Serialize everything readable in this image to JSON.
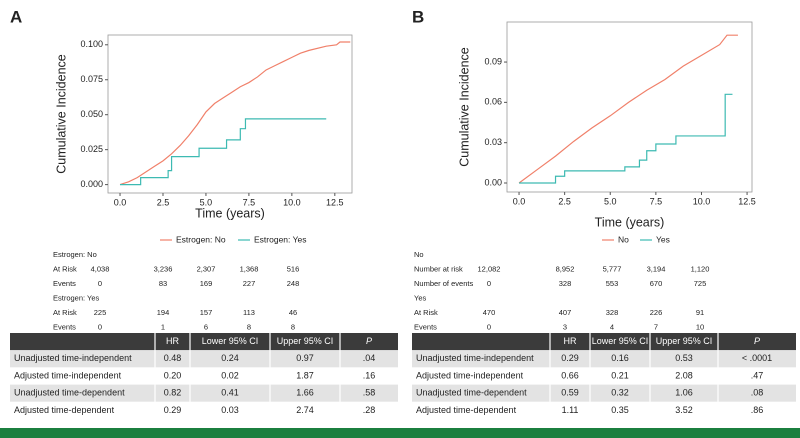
{
  "chart_data": [
    {
      "type": "line",
      "label": "A",
      "xlabel": "Time (years)",
      "ylabel": "Cumulative Incidence",
      "xlim": [
        -0.7,
        13.5
      ],
      "ylim": [
        -0.006,
        0.107
      ],
      "xticks": [
        {
          "value": 0,
          "label": "0.0"
        },
        2.5,
        {
          "value": 5,
          "label": "5.0"
        },
        7.5,
        {
          "value": 10,
          "label": "10.0"
        },
        12.5
      ],
      "yticks": [
        {
          "value": 0,
          "label": "0.000"
        },
        {
          "value": 0.025,
          "label": "0.025"
        },
        {
          "value": 0.05,
          "label": "0.050"
        },
        {
          "value": 0.075,
          "label": "0.075"
        },
        {
          "value": 0.1,
          "label": "0.100"
        }
      ],
      "series": [
        {
          "name": "Estrogen: No",
          "color": "#f0806a",
          "x": [
            0,
            0.5,
            1,
            1.5,
            2,
            2.5,
            3,
            3.5,
            4,
            4.5,
            5,
            5.5,
            6,
            6.5,
            7,
            7.5,
            8,
            8.5,
            9,
            9.5,
            10,
            10.5,
            11,
            12,
            12.6,
            12.8,
            13.4
          ],
          "values": [
            0,
            0.002,
            0.005,
            0.009,
            0.013,
            0.017,
            0.022,
            0.028,
            0.035,
            0.043,
            0.052,
            0.058,
            0.062,
            0.066,
            0.07,
            0.073,
            0.077,
            0.082,
            0.085,
            0.088,
            0.091,
            0.094,
            0.096,
            0.099,
            0.1,
            0.102,
            0.102
          ]
        },
        {
          "name": "Estrogen: Yes",
          "color": "#3dbab2",
          "x": [
            0,
            1.2,
            1.2,
            2.8,
            2.8,
            3.0,
            3.0,
            4.6,
            4.6,
            6.2,
            6.2,
            7.0,
            7.0,
            7.3,
            7.3,
            12
          ],
          "values": [
            0,
            0,
            0.005,
            0.005,
            0.01,
            0.01,
            0.02,
            0.02,
            0.026,
            0.026,
            0.032,
            0.032,
            0.04,
            0.04,
            0.047,
            0.047
          ]
        }
      ]
    },
    {
      "type": "line",
      "label": "B",
      "xlabel": "Time (years)",
      "ylabel": "Cumulative Incidence",
      "xlim": [
        -0.66,
        12.77
      ],
      "ylim": [
        -0.0067,
        0.1198
      ],
      "xticks": [
        {
          "value": 0,
          "label": "0.0"
        },
        2.5,
        {
          "value": 5,
          "label": "5.0"
        },
        7.5,
        {
          "value": 10,
          "label": "10.0"
        },
        12.5
      ],
      "yticks": [
        {
          "value": 0,
          "label": "0.00"
        },
        {
          "value": 0.03,
          "label": "0.03"
        },
        {
          "value": 0.06,
          "label": "0.06"
        },
        {
          "value": 0.09,
          "label": "0.09"
        }
      ],
      "series": [
        {
          "name": "No",
          "color": "#f0806a",
          "x": [
            0,
            1,
            2,
            3,
            4,
            5,
            6,
            7,
            8,
            9,
            10,
            11,
            11.4,
            12
          ],
          "values": [
            0,
            0.01,
            0.02,
            0.031,
            0.041,
            0.05,
            0.06,
            0.069,
            0.077,
            0.087,
            0.095,
            0.103,
            0.11,
            0.11
          ]
        },
        {
          "name": "Yes",
          "color": "#3dbab2",
          "x": [
            0,
            2,
            2,
            2.5,
            2.5,
            5.8,
            5.8,
            6.6,
            6.6,
            7,
            7,
            7.5,
            7.5,
            8.6,
            8.6,
            11.3,
            11.3,
            11.7
          ],
          "values": [
            0,
            0,
            0.005,
            0.005,
            0.009,
            0.009,
            0.012,
            0.012,
            0.017,
            0.017,
            0.024,
            0.024,
            0.029,
            0.029,
            0.035,
            0.035,
            0.066,
            0.066
          ]
        }
      ]
    }
  ],
  "risk_tables": [
    {
      "groups": [
        {
          "title": "Estrogen: No",
          "rows": [
            {
              "label": "At Risk",
              "values": [
                "4,038",
                "3,236",
                "2,307",
                "1,368",
                "516"
              ]
            },
            {
              "label": "Events",
              "values": [
                "0",
                "83",
                "169",
                "227",
                "248"
              ]
            }
          ]
        },
        {
          "title": "Estrogen: Yes",
          "rows": [
            {
              "label": "At Risk",
              "values": [
                "225",
                "194",
                "157",
                "113",
                "46"
              ]
            },
            {
              "label": "Events",
              "values": [
                "0",
                "1",
                "6",
                "8",
                "8"
              ]
            }
          ]
        }
      ]
    },
    {
      "groups": [
        {
          "title": "No",
          "rows": [
            {
              "label": "Number at risk",
              "values": [
                "12,082",
                "8,952",
                "5,777",
                "3,194",
                "1,120"
              ]
            },
            {
              "label": "Number of events",
              "values": [
                "0",
                "328",
                "553",
                "670",
                "725"
              ]
            }
          ]
        },
        {
          "title": "Yes",
          "rows": [
            {
              "label": "At Risk",
              "values": [
                "470",
                "407",
                "328",
                "226",
                "91"
              ]
            },
            {
              "label": "Events",
              "values": [
                "0",
                "3",
                "4",
                "7",
                "10"
              ]
            }
          ]
        }
      ]
    }
  ],
  "hr_tables": [
    {
      "columns": [
        "HR",
        "Lower 95% CI",
        "Upper 95% CI",
        "P"
      ],
      "rows": [
        {
          "label": "Unadjusted time-independent",
          "cells": [
            "0.48",
            "0.24",
            "0.97",
            ".04"
          ]
        },
        {
          "label": "Adjusted time-independent",
          "cells": [
            "0.20",
            "0.02",
            "1.87",
            ".16"
          ]
        },
        {
          "label": "Unadjusted time-dependent",
          "cells": [
            "0.82",
            "0.41",
            "1.66",
            ".58"
          ]
        },
        {
          "label": "Adjusted time-dependent",
          "cells": [
            "0.29",
            "0.03",
            "2.74",
            ".28"
          ]
        }
      ]
    },
    {
      "columns": [
        "HR",
        "Lower 95% CI",
        "Upper 95% CI",
        "P"
      ],
      "rows": [
        {
          "label": "Unadjusted time-independent",
          "cells": [
            "0.29",
            "0.16",
            "0.53",
            "< .0001"
          ]
        },
        {
          "label": "Adjusted time-independent",
          "cells": [
            "0.66",
            "0.21",
            "2.08",
            ".47"
          ]
        },
        {
          "label": "Unadjusted time-dependent",
          "cells": [
            "0.59",
            "0.32",
            "1.06",
            ".08"
          ]
        },
        {
          "label": "Adjusted time-dependent",
          "cells": [
            "1.11",
            "0.35",
            "3.52",
            ".86"
          ]
        }
      ]
    }
  ]
}
